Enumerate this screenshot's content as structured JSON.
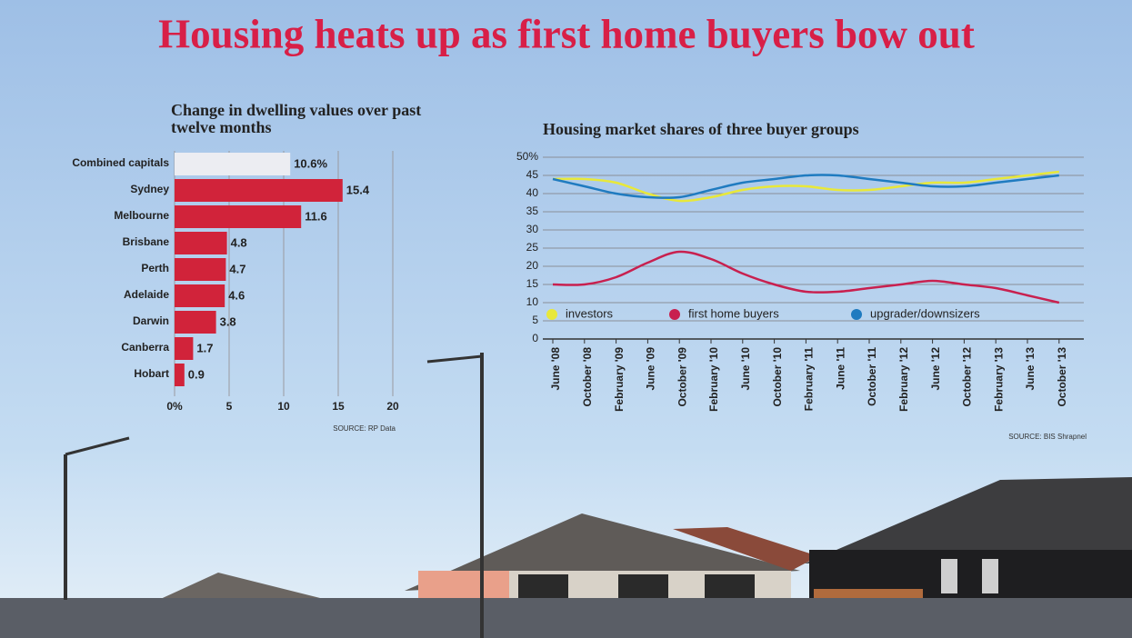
{
  "title": "Housing heats up  as first home buyers bow out",
  "chart_data": [
    {
      "type": "hbar",
      "title": "Change in dwelling values over past twelve months",
      "categories": [
        "Combined capitals",
        "Sydney",
        "Melbourne",
        "Brisbane",
        "Perth",
        "Adelaide",
        "Darwin",
        "Canberra",
        "Hobart"
      ],
      "values": [
        10.6,
        15.4,
        11.6,
        4.8,
        4.7,
        4.6,
        3.8,
        1.7,
        0.9
      ],
      "value_labels": [
        "10.6%",
        "15.4",
        "11.6",
        "4.8",
        "4.7",
        "4.6",
        "3.8",
        "1.7",
        "0.9"
      ],
      "colors": [
        "#ecedf2",
        "#d1233a",
        "#d1233a",
        "#d1233a",
        "#d1233a",
        "#d1233a",
        "#d1233a",
        "#d1233a",
        "#d1233a"
      ],
      "xlim": [
        0,
        20
      ],
      "xticks": [
        {
          "value": 0,
          "label": "0%"
        },
        5,
        10,
        15,
        20
      ],
      "grid": true,
      "source": "SOURCE: RP Data"
    },
    {
      "type": "line",
      "title": "Housing market shares of three buyer groups",
      "categories": [
        "June '08",
        "October '08",
        "February '09",
        "June '09",
        "October '09",
        "February '10",
        "June '10",
        "October '10",
        "February '11",
        "June '11",
        "October '11",
        "February '12",
        "June '12",
        "October '12",
        "February '13",
        "June '13",
        "October '13"
      ],
      "series": [
        {
          "name": "investors",
          "color": "#e8e83a",
          "values": [
            44,
            44,
            43,
            40,
            38,
            39,
            41,
            42,
            42,
            41,
            41,
            42,
            43,
            43,
            44,
            45,
            46
          ]
        },
        {
          "name": "first home buyers",
          "color": "#c8204f",
          "values": [
            15,
            15,
            17,
            21,
            24,
            22,
            18,
            15,
            13,
            13,
            14,
            15,
            16,
            15,
            14,
            12,
            10
          ]
        },
        {
          "name": "upgrader/downsizers",
          "color": "#1f7bc0",
          "values": [
            44,
            42,
            40,
            39,
            39,
            41,
            43,
            44,
            45,
            45,
            44,
            43,
            42,
            42,
            43,
            44,
            45
          ]
        }
      ],
      "ylim": [
        0,
        50
      ],
      "yticks": [
        0,
        5,
        10,
        15,
        20,
        25,
        30,
        35,
        40,
        45,
        {
          "value": 50,
          "label": "50%"
        }
      ],
      "grid": true,
      "legend": "lower center",
      "source": "SOURCE: BIS Shrapnel"
    }
  ]
}
